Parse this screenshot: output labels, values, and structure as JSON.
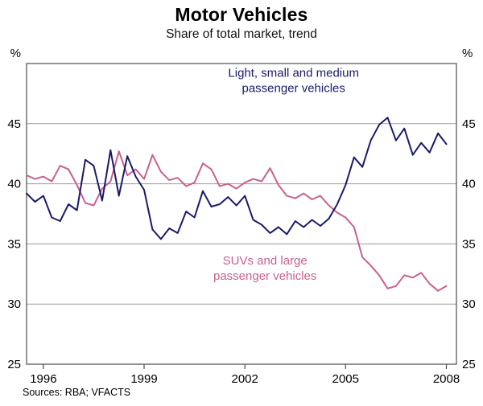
{
  "chart_data": {
    "type": "line",
    "title": "Motor Vehicles",
    "subtitle": "Share of total market, trend",
    "unit_label": "%",
    "source": "Sources: RBA; VFACTS",
    "xlim": [
      1995.5,
      2008.3
    ],
    "ylim": [
      25,
      50
    ],
    "yticks": [
      25,
      30,
      35,
      40,
      45
    ],
    "xticks": [
      1996,
      1999,
      2002,
      2005,
      2008
    ],
    "grid_values": [
      30,
      35,
      40,
      45
    ],
    "legend_position": "none",
    "grid": true,
    "series": [
      {
        "id": "suv-large",
        "name": "SUVs and large passenger vehicles",
        "color": "#c8608f",
        "x_start": 1995.5,
        "x_step": 0.25,
        "values": [
          40.7,
          40.4,
          40.6,
          40.2,
          41.5,
          41.2,
          39.9,
          38.4,
          38.2,
          39.6,
          40.2,
          42.7,
          40.7,
          41.2,
          40.4,
          42.4,
          41.0,
          40.3,
          40.5,
          39.8,
          40.1,
          41.7,
          41.2,
          39.8,
          40.0,
          39.6,
          40.1,
          40.4,
          40.2,
          41.3,
          39.9,
          39.0,
          38.8,
          39.2,
          38.7,
          39.0,
          38.2,
          37.6,
          37.2,
          36.4,
          33.9,
          33.2,
          32.4,
          31.3,
          31.5,
          32.4,
          32.2,
          32.6,
          31.7,
          31.1,
          31.5
        ]
      },
      {
        "id": "light-small-medium",
        "name": "Light, small and medium passenger vehicles",
        "color": "#1a1a6a",
        "x_start": 1995.5,
        "x_step": 0.25,
        "values": [
          39.2,
          38.5,
          39.0,
          37.2,
          36.9,
          38.3,
          37.8,
          42.0,
          41.5,
          38.6,
          42.8,
          39.0,
          42.3,
          40.6,
          39.5,
          36.2,
          35.4,
          36.3,
          35.9,
          37.7,
          37.2,
          39.4,
          38.1,
          38.3,
          38.9,
          38.2,
          39.0,
          37.0,
          36.6,
          35.9,
          36.4,
          35.8,
          36.9,
          36.4,
          37.0,
          36.5,
          37.1,
          38.3,
          39.9,
          42.2,
          41.4,
          43.6,
          44.9,
          45.5,
          43.6,
          44.6,
          42.4,
          43.4,
          42.6,
          44.2,
          43.3
        ]
      }
    ],
    "annotations": [
      {
        "id": "label-light-small-medium",
        "lines": [
          "Light, small and medium",
          "passenger vehicles"
        ],
        "color": "#1a1a6a",
        "x": 2003.45,
        "y": 48.9
      },
      {
        "id": "label-suv-large",
        "lines": [
          "SUVs and large",
          "passenger vehicles"
        ],
        "color": "#c8608f",
        "x": 2002.6,
        "y": 33.3
      }
    ]
  }
}
